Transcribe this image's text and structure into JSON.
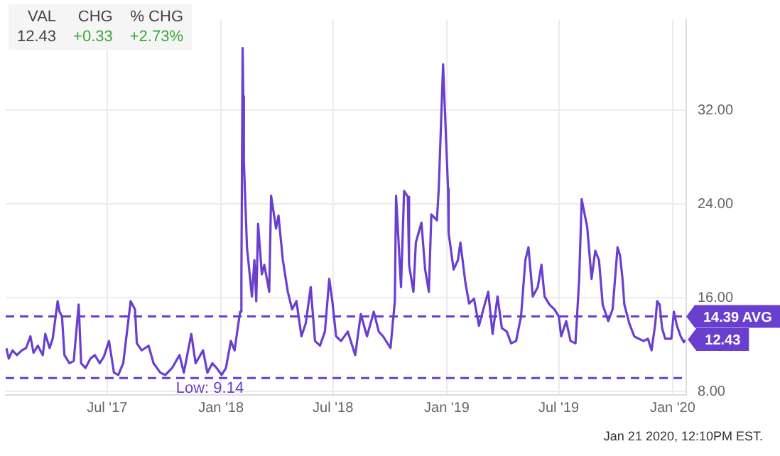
{
  "chart_data": {
    "type": "line",
    "x": [
      "2017-01-19",
      "2017-01-23",
      "2017-01-29",
      "2017-02-05",
      "2017-02-13",
      "2017-02-20",
      "2017-02-27",
      "2017-03-04",
      "2017-03-11",
      "2017-03-19",
      "2017-03-23",
      "2017-03-30",
      "2017-04-04",
      "2017-04-12",
      "2017-04-15",
      "2017-04-19",
      "2017-04-23",
      "2017-05-01",
      "2017-05-08",
      "2017-05-16",
      "2017-05-20",
      "2017-05-27",
      "2017-06-04",
      "2017-06-11",
      "2017-06-19",
      "2017-06-26",
      "2017-07-04",
      "2017-07-12",
      "2017-07-19",
      "2017-07-27",
      "2017-08-08",
      "2017-08-15",
      "2017-08-18",
      "2017-08-26",
      "2017-09-06",
      "2017-09-14",
      "2017-09-25",
      "2017-10-03",
      "2017-10-14",
      "2017-10-26",
      "2017-11-02",
      "2017-11-14",
      "2017-11-21",
      "2017-12-03",
      "2017-12-10",
      "2017-12-18",
      "2017-12-25",
      "2018-01-02",
      "2018-01-09",
      "2018-01-17",
      "2018-01-23",
      "2018-01-28",
      "2018-02-01",
      "2018-02-03",
      "2018-02-05",
      "2018-02-06",
      "2018-02-07",
      "2018-02-12",
      "2018-02-20",
      "2018-02-24",
      "2018-02-27",
      "2018-03-02",
      "2018-03-08",
      "2018-03-12",
      "2018-03-20",
      "2018-03-23",
      "2018-03-31",
      "2018-04-04",
      "2018-04-11",
      "2018-04-19",
      "2018-04-26",
      "2018-05-03",
      "2018-05-11",
      "2018-05-18",
      "2018-05-26",
      "2018-06-02",
      "2018-06-10",
      "2018-06-18",
      "2018-06-25",
      "2018-06-30",
      "2018-07-06",
      "2018-07-14",
      "2018-07-25",
      "2018-08-06",
      "2018-08-15",
      "2018-08-25",
      "2018-09-05",
      "2018-09-13",
      "2018-09-20",
      "2018-10-02",
      "2018-10-09",
      "2018-10-11",
      "2018-10-19",
      "2018-10-24",
      "2018-10-30",
      "2018-11-01",
      "2018-11-08",
      "2018-11-12",
      "2018-11-21",
      "2018-11-27",
      "2018-12-03",
      "2018-12-07",
      "2018-12-16",
      "2018-12-19",
      "2018-12-26",
      "2019-01-03",
      "2019-01-04",
      "2019-01-12",
      "2019-01-19",
      "2019-01-23",
      "2019-01-31",
      "2019-02-06",
      "2019-02-14",
      "2019-02-22",
      "2019-03-01",
      "2019-03-09",
      "2019-03-16",
      "2019-03-24",
      "2019-03-31",
      "2019-04-08",
      "2019-04-15",
      "2019-04-23",
      "2019-05-01",
      "2019-05-08",
      "2019-05-13",
      "2019-05-20",
      "2019-05-28",
      "2019-06-03",
      "2019-06-08",
      "2019-06-16",
      "2019-06-24",
      "2019-07-01",
      "2019-07-05",
      "2019-07-13",
      "2019-07-20",
      "2019-07-28",
      "2019-08-03",
      "2019-08-07",
      "2019-08-16",
      "2019-08-23",
      "2019-08-29",
      "2019-09-04",
      "2019-09-10",
      "2019-09-19",
      "2019-09-26",
      "2019-10-04",
      "2019-10-08",
      "2019-10-12",
      "2019-10-15",
      "2019-10-23",
      "2019-10-31",
      "2019-11-07",
      "2019-11-15",
      "2019-11-22",
      "2019-11-28",
      "2019-12-04",
      "2019-12-07",
      "2019-12-11",
      "2019-12-15",
      "2019-12-20",
      "2019-12-30",
      "2020-01-03",
      "2020-01-08",
      "2020-01-14",
      "2020-01-19",
      "2020-01-21"
    ],
    "series": [
      {
        "color": "#6a3fd0",
        "values": [
          11.7,
          10.8,
          11.5,
          11.1,
          11.5,
          11.7,
          12.7,
          11.3,
          11.9,
          11.1,
          12.9,
          11.7,
          12.5,
          15.7,
          14.8,
          14.4,
          11.1,
          10.4,
          10.6,
          15.4,
          10.4,
          10.0,
          10.8,
          11.1,
          10.4,
          11.0,
          12.3,
          9.6,
          9.4,
          10.4,
          15.7,
          15.0,
          12.1,
          11.5,
          11.9,
          10.4,
          9.6,
          9.4,
          10.0,
          11.1,
          9.6,
          12.9,
          10.4,
          11.5,
          9.6,
          10.4,
          10.0,
          9.4,
          10.0,
          12.3,
          11.5,
          13.4,
          14.8,
          17.6,
          37.3,
          33.2,
          27.6,
          20.3,
          16.1,
          19.2,
          15.7,
          22.3,
          18.0,
          18.8,
          16.5,
          24.7,
          21.9,
          23.0,
          19.2,
          16.5,
          15.0,
          15.7,
          12.7,
          13.8,
          16.9,
          12.3,
          11.9,
          13.1,
          17.6,
          15.7,
          12.7,
          12.3,
          13.1,
          11.1,
          14.6,
          12.7,
          14.8,
          13.1,
          12.7,
          11.7,
          15.7,
          24.7,
          16.9,
          25.1,
          24.6,
          18.8,
          16.5,
          20.7,
          22.4,
          18.4,
          16.5,
          23.1,
          22.6,
          25.3,
          35.9,
          25.3,
          21.5,
          18.4,
          19.2,
          20.7,
          17.3,
          15.5,
          15.9,
          13.6,
          15.0,
          16.5,
          12.9,
          16.1,
          13.4,
          13.1,
          12.1,
          12.3,
          14.4,
          19.2,
          20.3,
          16.1,
          16.9,
          18.8,
          16.1,
          15.4,
          15.0,
          14.4,
          12.7,
          14.0,
          12.3,
          12.1,
          17.6,
          24.4,
          22.0,
          17.6,
          20.0,
          19.2,
          15.4,
          14.0,
          15.0,
          20.3,
          19.6,
          17.6,
          15.4,
          13.8,
          12.7,
          12.5,
          12.3,
          12.5,
          11.5,
          13.8,
          15.7,
          15.4,
          13.4,
          12.5,
          12.5,
          14.8,
          13.6,
          12.7,
          12.2,
          12.4
        ]
      }
    ],
    "xlim": [
      "2017-01-18",
      "2020-01-23"
    ],
    "xticks": [
      {
        "value": "2017-07-01",
        "label": "Jul '17"
      },
      {
        "value": "2018-01-01",
        "label": "Jan '18"
      },
      {
        "value": "2018-07-01",
        "label": "Jul '18"
      },
      {
        "value": "2019-01-01",
        "label": "Jan '19"
      },
      {
        "value": "2019-07-01",
        "label": "Jul '19"
      },
      {
        "value": "2020-01-01",
        "label": "Jan '20"
      }
    ],
    "ylim": [
      7.7,
      39.7
    ],
    "yticks": [
      {
        "value": 8,
        "label": "8.00"
      },
      {
        "value": 16,
        "label": "16.00"
      },
      {
        "value": 24,
        "label": "24.00"
      },
      {
        "value": 32,
        "label": "32.00"
      }
    ],
    "ref_lines": [
      {
        "axis": "y",
        "value": 14.39,
        "label": "14.39 AVG",
        "color": "#6a3fd0",
        "line_style": "dashed"
      },
      {
        "axis": "y",
        "value": 9.14,
        "label": "Low: 9.14",
        "color": "#6a3fd0",
        "line_style": "dashed"
      }
    ],
    "annotations": [
      "VAL",
      "12.43",
      "CHG",
      "+0.33",
      "% CHG",
      "+2.73%",
      {
        "text": "12.43",
        "x": "2020-01-21",
        "y": 12.43
      },
      "Jan 21 2020, 12:10PM EST."
    ],
    "grid": true,
    "legend": false,
    "marker": "none",
    "line_style": "solid"
  }
}
